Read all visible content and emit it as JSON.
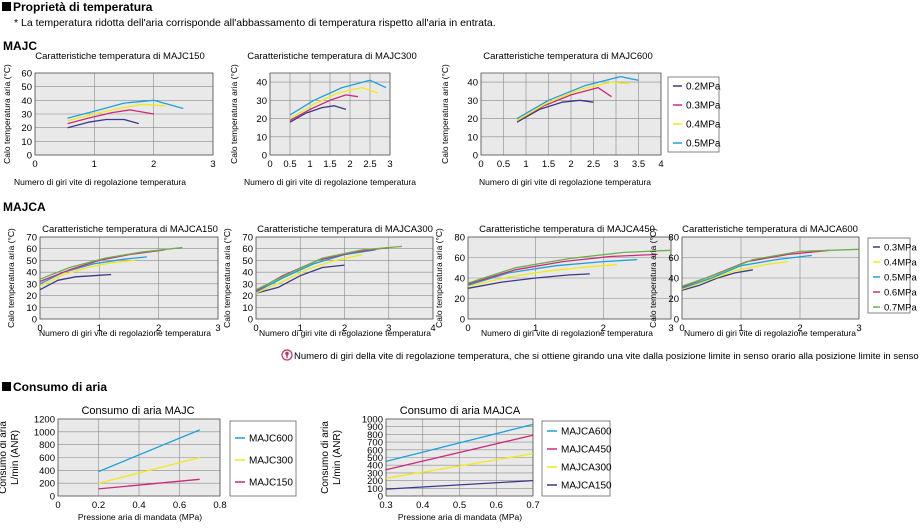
{
  "section1": {
    "title": "Proprietà di temperatura",
    "note": "* La temperatura ridotta dell'aria corrisponde all'abbassamento di temperatura rispetto all'aria in entrata.",
    "group_majc": "MAJC",
    "group_majca": "MAJCA",
    "footnote_icon": "info-circle-icon",
    "footnote": "Numero di giri della vite di regolazione temperatura, che si ottiene girando una vite dalla posizione limite in senso orario alla posizione limite in senso antiorario."
  },
  "section2": {
    "title": "Consumo di aria"
  },
  "legends": {
    "majc": [
      "0.2MPa",
      "0.3MPa",
      "0.4MPa",
      "0.5MPa"
    ],
    "majca": [
      "0.3MPa",
      "0.4MPa",
      "0.5MPa",
      "0.6MPa",
      "0.7MPa"
    ],
    "consumo_majc": [
      "MAJC600",
      "MAJC300",
      "MAJC150"
    ],
    "consumo_majca": [
      "MAJCA600",
      "MAJCA450",
      "MAJCA300",
      "MAJCA150"
    ]
  },
  "colors": {
    "0.2MPa": "#3a3a8c",
    "0.3MPa": "#cc2a7a",
    "0.4MPa": "#f0ea1a",
    "0.5MPa": "#1fa0dc",
    "0.3MPa_a": "#3a3a8c",
    "0.4MPa_a": "#f0ea1a",
    "0.5MPa_a": "#1fa0dc",
    "0.6MPa_a": "#cc2a7a",
    "0.7MPa_a": "#6ab04a",
    "MAJC600": "#1fa0dc",
    "MAJC300": "#f0ea1a",
    "MAJC150": "#cc2a7a",
    "MAJCA600": "#1fa0dc",
    "MAJCA450": "#cc2a7a",
    "MAJCA300": "#f0ea1a",
    "MAJCA150": "#3a3a8c"
  },
  "chart_data": [
    {
      "id": "majc150",
      "type": "line",
      "title": "Caratteristiche temperatura di MAJC150",
      "xlabel": "Numero di giri vite di regolazione temperatura",
      "ylabel": "Calo temperatura aria (°C)",
      "xlim": [
        0,
        3
      ],
      "ylim": [
        0,
        60
      ],
      "xticks": [
        0,
        1,
        2,
        3
      ],
      "yticks": [
        0,
        10,
        20,
        30,
        40,
        50,
        60
      ],
      "series": [
        {
          "name": "0.2MPa",
          "x": [
            0.55,
            0.9,
            1.2,
            1.5,
            1.75
          ],
          "y": [
            20,
            24,
            26,
            26,
            23
          ]
        },
        {
          "name": "0.3MPa",
          "x": [
            0.55,
            0.9,
            1.3,
            1.6,
            2.0
          ],
          "y": [
            23,
            27,
            31,
            33,
            30
          ]
        },
        {
          "name": "0.4MPa",
          "x": [
            0.55,
            1.0,
            1.4,
            1.8,
            2.2
          ],
          "y": [
            25,
            30,
            34,
            37,
            36
          ]
        },
        {
          "name": "0.5MPa",
          "x": [
            0.55,
            1.0,
            1.5,
            2.0,
            2.5
          ],
          "y": [
            27,
            32,
            38,
            40,
            34
          ]
        }
      ]
    },
    {
      "id": "majc300",
      "type": "line",
      "title": "Caratteristiche temperatura di MAJC300",
      "xlabel": "Numero di giri vite di regolazione temperatura",
      "ylabel": "Calo temperatura aria (°C)",
      "xlim": [
        0,
        3
      ],
      "ylim": [
        0,
        45
      ],
      "xticks": [
        0,
        0.5,
        1,
        1.5,
        2,
        2.5,
        3
      ],
      "yticks": [
        0,
        10,
        20,
        30,
        40
      ],
      "series": [
        {
          "name": "0.2MPa",
          "x": [
            0.5,
            0.9,
            1.3,
            1.6,
            1.9
          ],
          "y": [
            18,
            23,
            26,
            27,
            25
          ]
        },
        {
          "name": "0.3MPa",
          "x": [
            0.5,
            1.0,
            1.5,
            1.9,
            2.2
          ],
          "y": [
            19,
            25,
            30,
            33,
            32
          ]
        },
        {
          "name": "0.4MPa",
          "x": [
            0.5,
            1.1,
            1.7,
            2.3,
            2.7
          ],
          "y": [
            20,
            28,
            34,
            37,
            34
          ]
        },
        {
          "name": "0.5MPa",
          "x": [
            0.5,
            1.1,
            1.8,
            2.5,
            2.9
          ],
          "y": [
            22,
            30,
            37,
            41,
            37
          ]
        }
      ]
    },
    {
      "id": "majc600",
      "type": "line",
      "title": "Caratteristiche temperatura di MAJC600",
      "xlabel": "Numero di giri vite di regolazione temperatura",
      "ylabel": "Calo temperatura aria (°C)",
      "xlim": [
        0,
        4
      ],
      "ylim": [
        0,
        45
      ],
      "xticks": [
        0,
        0.5,
        1,
        1.5,
        2,
        2.5,
        3,
        3.5,
        4
      ],
      "yticks": [
        0,
        10,
        20,
        30,
        40
      ],
      "series": [
        {
          "name": "0.2MPa",
          "x": [
            0.8,
            1.3,
            1.8,
            2.2,
            2.5
          ],
          "y": [
            18,
            25,
            29,
            30,
            29
          ]
        },
        {
          "name": "0.3MPa",
          "x": [
            0.8,
            1.4,
            2.0,
            2.6,
            2.9
          ],
          "y": [
            19,
            27,
            33,
            37,
            32
          ]
        },
        {
          "name": "0.4MPa",
          "x": [
            0.8,
            1.5,
            2.2,
            2.9,
            3.3
          ],
          "y": [
            19,
            29,
            36,
            40,
            39
          ]
        },
        {
          "name": "0.5MPa",
          "x": [
            0.8,
            1.5,
            2.3,
            3.1,
            3.5
          ],
          "y": [
            20,
            30,
            38,
            43,
            41
          ]
        }
      ]
    },
    {
      "id": "majca150",
      "type": "line",
      "title": "Caratteristiche temperatura di MAJCA150",
      "xlabel": "Numero di giri vite di regolazione temperatura",
      "ylabel": "Calo temperatura aria (°C)",
      "xlim": [
        0,
        3
      ],
      "ylim": [
        0,
        70
      ],
      "xticks": [
        0,
        1,
        2,
        3
      ],
      "yticks": [
        0,
        10,
        20,
        30,
        40,
        50,
        60,
        70
      ],
      "series": [
        {
          "name": "0.3MPa",
          "x": [
            0,
            0.3,
            0.6,
            0.9,
            1.2
          ],
          "y": [
            25,
            33,
            36,
            37,
            38
          ]
        },
        {
          "name": "0.4MPa",
          "x": [
            0,
            0.4,
            0.8,
            1.2,
            1.6
          ],
          "y": [
            28,
            38,
            44,
            48,
            50
          ]
        },
        {
          "name": "0.5MPa",
          "x": [
            0,
            0.4,
            0.9,
            1.4,
            1.8
          ],
          "y": [
            30,
            40,
            47,
            51,
            53
          ]
        },
        {
          "name": "0.6MPa",
          "x": [
            0,
            0.5,
            1.0,
            1.5,
            2.1
          ],
          "y": [
            32,
            42,
            50,
            55,
            59
          ]
        },
        {
          "name": "0.7MPa",
          "x": [
            0,
            0.5,
            1.1,
            1.7,
            2.4
          ],
          "y": [
            34,
            44,
            52,
            57,
            61
          ]
        }
      ]
    },
    {
      "id": "majca300",
      "type": "line",
      "title": "Caratteristiche temperatura di MAJCA300",
      "xlabel": "Numero di giri vite di regolazione temperatura",
      "ylabel": "Calo temperatura aria (°C)",
      "xlim": [
        0,
        4
      ],
      "ylim": [
        0,
        70
      ],
      "xticks": [
        0,
        1,
        2,
        3,
        4
      ],
      "yticks": [
        0,
        10,
        20,
        30,
        40,
        50,
        60,
        70
      ],
      "series": [
        {
          "name": "0.3MPa",
          "x": [
            0,
            0.5,
            1.0,
            1.5,
            2.0
          ],
          "y": [
            22,
            27,
            37,
            44,
            46
          ]
        },
        {
          "name": "0.4MPa",
          "x": [
            0,
            0.6,
            1.2,
            1.8,
            2.4
          ],
          "y": [
            22,
            32,
            43,
            50,
            55
          ]
        },
        {
          "name": "0.5MPa",
          "x": [
            0,
            0.6,
            1.3,
            2.0,
            2.7
          ],
          "y": [
            23,
            35,
            47,
            55,
            59
          ]
        },
        {
          "name": "0.6MPa",
          "x": [
            0,
            0.6,
            1.4,
            2.2,
            3.0
          ],
          "y": [
            24,
            37,
            50,
            57,
            61
          ]
        },
        {
          "name": "0.7MPa",
          "x": [
            0,
            0.7,
            1.5,
            2.4,
            3.3
          ],
          "y": [
            25,
            38,
            52,
            59,
            62
          ]
        }
      ]
    },
    {
      "id": "majca450",
      "type": "line",
      "title": "Caratteristiche temperatura di MAJCA450",
      "xlabel": "Numero di giri vite di regolazione temperatura",
      "ylabel": "Calo temperatura aria (°C)",
      "xlim": [
        0,
        3
      ],
      "ylim": [
        0,
        80
      ],
      "xticks": [
        0,
        1,
        2,
        3
      ],
      "yticks": [
        0,
        20,
        40,
        60,
        80
      ],
      "series": [
        {
          "name": "0.3MPa",
          "x": [
            0,
            0.5,
            1.0,
            1.5,
            1.8
          ],
          "y": [
            30,
            36,
            40,
            43,
            44
          ]
        },
        {
          "name": "0.4MPa",
          "x": [
            0,
            0.6,
            1.2,
            1.8,
            2.2
          ],
          "y": [
            32,
            41,
            47,
            51,
            53
          ]
        },
        {
          "name": "0.5MPa",
          "x": [
            0,
            0.6,
            1.3,
            2.0,
            2.5
          ],
          "y": [
            33,
            45,
            52,
            56,
            58
          ]
        },
        {
          "name": "0.6MPa",
          "x": [
            0,
            0.7,
            1.4,
            2.1,
            2.8
          ],
          "y": [
            34,
            48,
            56,
            61,
            63
          ]
        },
        {
          "name": "0.7MPa",
          "x": [
            0,
            0.7,
            1.5,
            2.3,
            3.0
          ],
          "y": [
            35,
            50,
            59,
            65,
            67
          ]
        }
      ]
    },
    {
      "id": "majca600",
      "type": "line",
      "title": "Caratteristiche temperatura di MAJCA600",
      "xlabel": "Numero di giri vite di regolazione temperatura",
      "ylabel": "Calo temperatura aria (°C)",
      "xlim": [
        0,
        3
      ],
      "ylim": [
        0,
        80
      ],
      "xticks": [
        0,
        1,
        2,
        3
      ],
      "yticks": [
        0,
        20,
        40,
        60,
        80
      ],
      "series": [
        {
          "name": "0.3MPa",
          "x": [
            0,
            0.3,
            0.6,
            0.9,
            1.2
          ],
          "y": [
            28,
            33,
            40,
            45,
            48
          ]
        },
        {
          "name": "0.4MPa",
          "x": [
            0,
            0.4,
            0.9,
            1.4,
            1.8
          ],
          "y": [
            29,
            37,
            47,
            53,
            56
          ]
        },
        {
          "name": "0.5MPa",
          "x": [
            0,
            0.5,
            1.0,
            1.6,
            2.2
          ],
          "y": [
            30,
            40,
            52,
            58,
            62
          ]
        },
        {
          "name": "0.6MPa",
          "x": [
            0,
            0.5,
            1.1,
            1.8,
            2.5
          ],
          "y": [
            31,
            42,
            56,
            63,
            67
          ]
        },
        {
          "name": "0.7MPa",
          "x": [
            0,
            0.6,
            1.2,
            2.0,
            3.0
          ],
          "y": [
            32,
            44,
            58,
            66,
            68
          ]
        }
      ]
    },
    {
      "id": "consumo_majc",
      "type": "line",
      "title": "Consumo di aria MAJC",
      "xlabel": "Pressione aria di mandata (MPa)",
      "ylabel": "Consumo di aria L/min (ANR)",
      "xlim": [
        0,
        0.8
      ],
      "ylim": [
        0,
        1200
      ],
      "xticks": [
        0,
        0.2,
        0.4,
        0.6,
        0.8
      ],
      "yticks": [
        0,
        200,
        400,
        600,
        800,
        1000,
        1200
      ],
      "series": [
        {
          "name": "MAJC600",
          "x": [
            0.2,
            0.7
          ],
          "y": [
            380,
            1030
          ]
        },
        {
          "name": "MAJC300",
          "x": [
            0.2,
            0.7
          ],
          "y": [
            200,
            600
          ]
        },
        {
          "name": "MAJC150",
          "x": [
            0.2,
            0.7
          ],
          "y": [
            110,
            260
          ]
        }
      ]
    },
    {
      "id": "consumo_majca",
      "type": "line",
      "title": "Consumo di aria MAJCA",
      "xlabel": "Pressione aria di mandata (MPa)",
      "ylabel": "Consumo di aria L/min (ANR)",
      "xlim": [
        0.3,
        0.7
      ],
      "ylim": [
        0,
        1000
      ],
      "xticks": [
        0.3,
        0.4,
        0.5,
        0.6,
        0.7
      ],
      "yticks": [
        0,
        100,
        200,
        300,
        400,
        500,
        600,
        700,
        800,
        900,
        1000
      ],
      "series": [
        {
          "name": "MAJCA600",
          "x": [
            0.3,
            0.7
          ],
          "y": [
            450,
            930
          ]
        },
        {
          "name": "MAJCA450",
          "x": [
            0.3,
            0.7
          ],
          "y": [
            340,
            790
          ]
        },
        {
          "name": "MAJCA300",
          "x": [
            0.3,
            0.7
          ],
          "y": [
            230,
            550
          ]
        },
        {
          "name": "MAJCA150",
          "x": [
            0.3,
            0.7
          ],
          "y": [
            90,
            200
          ]
        }
      ]
    }
  ]
}
